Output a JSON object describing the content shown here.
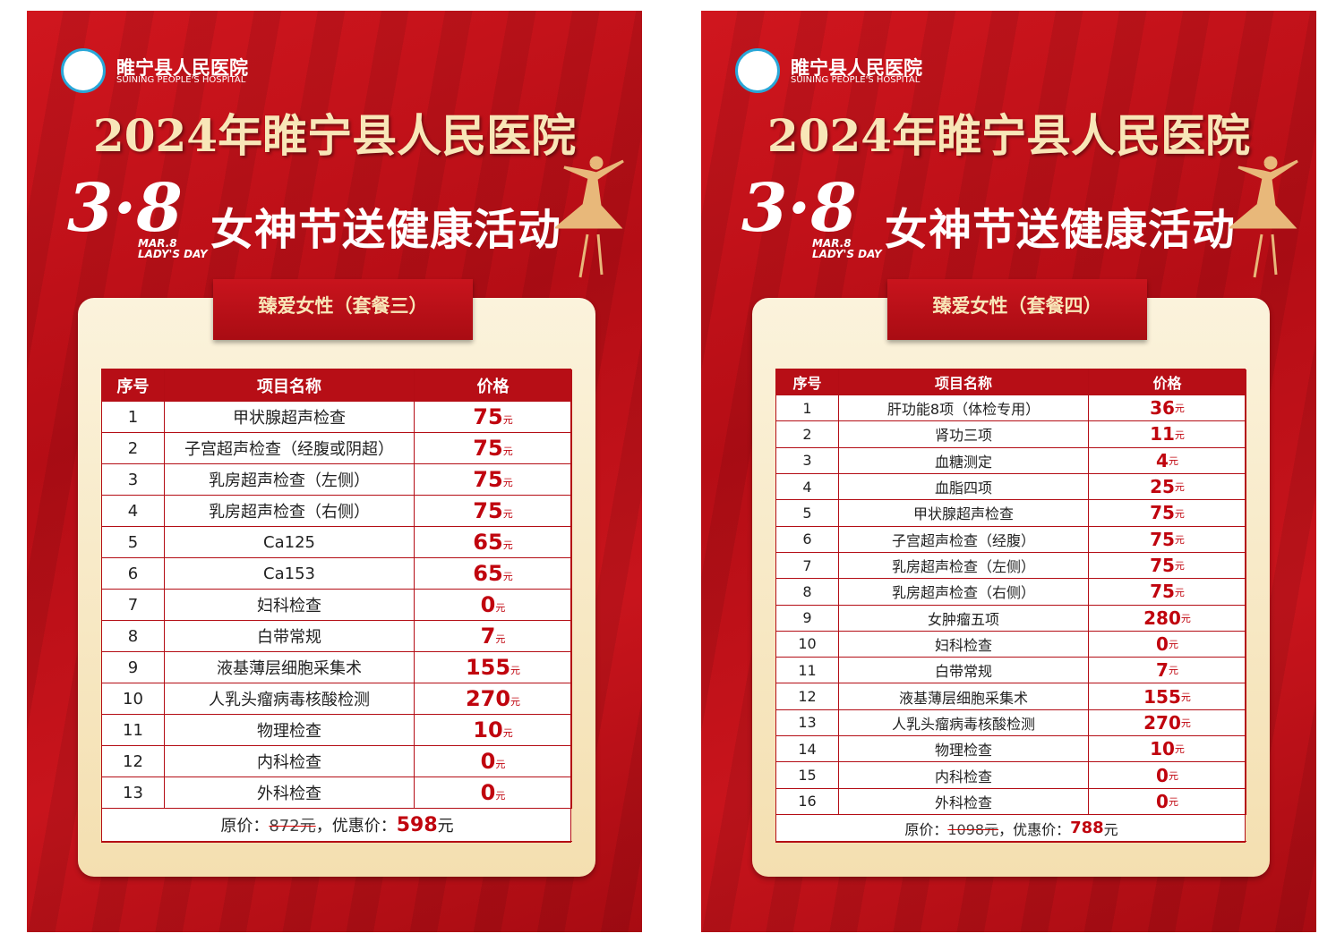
{
  "posters": [
    {
      "hospital_name": "睢宁县人民医院",
      "hospital_name_en": "SUINING PEOPLE'S HOSPITAL",
      "title": "2024年睢宁县人民医院",
      "event_number": "3·8",
      "event_date": "MAR.8",
      "event_day": "LADY'S DAY",
      "event_title": "女神节送健康活动",
      "package": "臻爱女性（套餐三）",
      "currency": "元",
      "table": {
        "headers": [
          "序号",
          "项目名称",
          "价格"
        ],
        "rows": [
          [
            "1",
            "甲状腺超声检查",
            "75"
          ],
          [
            "2",
            "子宫超声检查（经腹或阴超）",
            "75"
          ],
          [
            "3",
            "乳房超声检查（左侧）",
            "75"
          ],
          [
            "4",
            "乳房超声检查（右侧）",
            "75"
          ],
          [
            "5",
            "Ca125",
            "65"
          ],
          [
            "6",
            "Ca153",
            "65"
          ],
          [
            "7",
            "妇科检查",
            "0"
          ],
          [
            "8",
            "白带常规",
            "7"
          ],
          [
            "9",
            "液基薄层细胞采集术",
            "155"
          ],
          [
            "10",
            "人乳头瘤病毒核酸检测",
            "270"
          ],
          [
            "11",
            "物理检查",
            "10"
          ],
          [
            "12",
            "内科检查",
            "0"
          ],
          [
            "13",
            "外科检查",
            "0"
          ]
        ]
      },
      "footer": {
        "original_label": "原价：",
        "original_price": "872元",
        "discount_label": "，优惠价：",
        "discount_price": "598",
        "discount_unit": "元"
      }
    },
    {
      "hospital_name": "睢宁县人民医院",
      "hospital_name_en": "SUINING PEOPLE'S HOSPITAL",
      "title": "2024年睢宁县人民医院",
      "event_number": "3·8",
      "event_date": "MAR.8",
      "event_day": "LADY'S DAY",
      "event_title": "女神节送健康活动",
      "package": "臻爱女性（套餐四）",
      "currency": "元",
      "table": {
        "headers": [
          "序号",
          "项目名称",
          "价格"
        ],
        "rows": [
          [
            "1",
            "肝功能8项（体检专用）",
            "36"
          ],
          [
            "2",
            "肾功三项",
            "11"
          ],
          [
            "3",
            "血糖测定",
            "4"
          ],
          [
            "4",
            "血脂四项",
            "25"
          ],
          [
            "5",
            "甲状腺超声检查",
            "75"
          ],
          [
            "6",
            "子宫超声检查（经腹）",
            "75"
          ],
          [
            "7",
            "乳房超声检查（左侧）",
            "75"
          ],
          [
            "8",
            "乳房超声检查（右侧）",
            "75"
          ],
          [
            "9",
            "女肿瘤五项",
            "280"
          ],
          [
            "10",
            "妇科检查",
            "0"
          ],
          [
            "11",
            "白带常规",
            "7"
          ],
          [
            "12",
            "液基薄层细胞采集术",
            "155"
          ],
          [
            "13",
            "人乳头瘤病毒核酸检测",
            "270"
          ],
          [
            "14",
            "物理检查",
            "10"
          ],
          [
            "15",
            "内科检查",
            "0"
          ],
          [
            "16",
            "外科检查",
            "0"
          ]
        ]
      },
      "footer": {
        "original_label": "原价：",
        "original_price": "1098元",
        "discount_label": "，优惠价：",
        "discount_price": "788",
        "discount_unit": "元"
      }
    }
  ]
}
